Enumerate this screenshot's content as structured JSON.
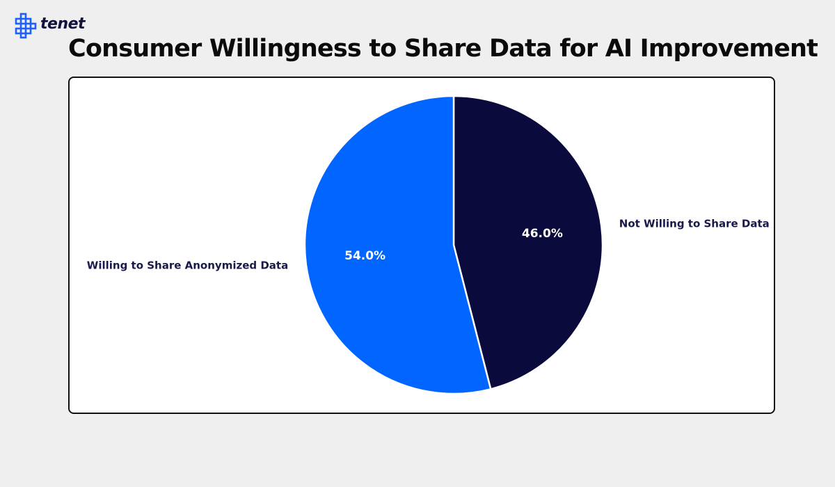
{
  "brand": {
    "name": "tenet",
    "logo_icon": "tenet-logo-icon",
    "color": "#1f5fff"
  },
  "chart_data": {
    "type": "pie",
    "title": "Consumer Willingness to Share Data for AI Improvement",
    "categories": [
      "Not Willing to Share Data",
      "Willing to Share Anonymized Data"
    ],
    "values": [
      46.0,
      54.0
    ],
    "value_labels": [
      "46.0%",
      "54.0%"
    ],
    "colors": [
      "#0a0a3c",
      "#0066ff"
    ],
    "label_color": "#1a1a4a",
    "pct_label_color": "#ffffff",
    "start_angle_deg": 90,
    "direction": "clockwise",
    "legend": "none"
  }
}
